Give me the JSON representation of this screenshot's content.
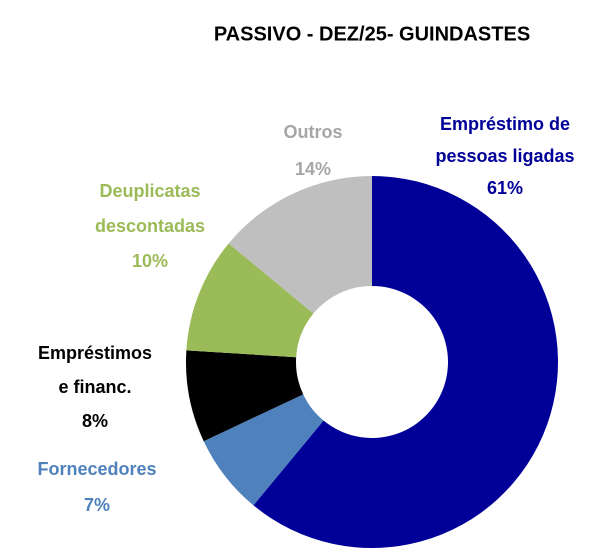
{
  "chart_data": {
    "type": "donut",
    "title": "PASSIVO - DEZ/25- GUINDASTES",
    "categories": [
      "Empréstimo de\npessoas ligadas",
      "Fornecedores",
      "Empréstimos\ne financ.",
      "Deuplicatas\ndescontadas",
      "Outros"
    ],
    "values": [
      61,
      7,
      8,
      10,
      14
    ],
    "value_labels": [
      "61%",
      "7%",
      "8%",
      "10%",
      "14%"
    ],
    "colors": [
      "#000099",
      "#4f81bd",
      "#000000",
      "#9bbb59",
      "#bfbfbf"
    ]
  }
}
